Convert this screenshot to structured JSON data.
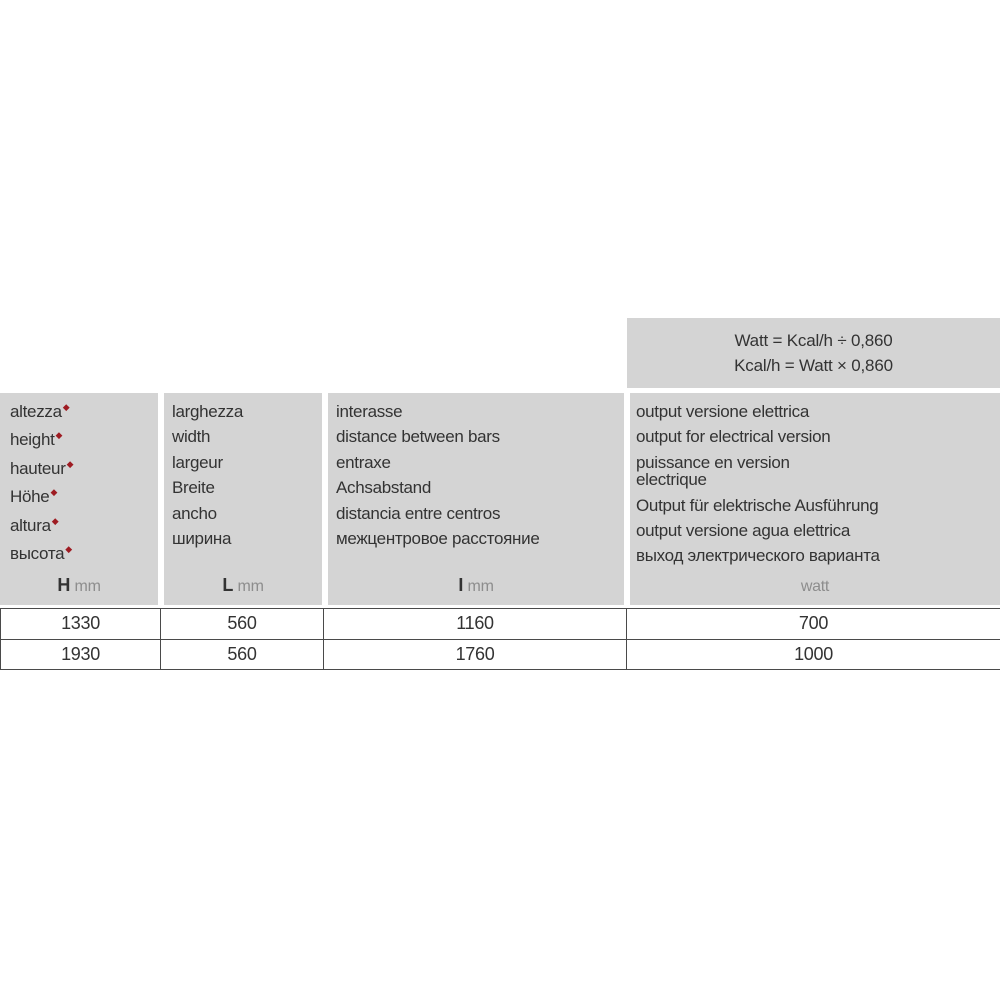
{
  "icons": {
    "diamond": "◆"
  },
  "colors": {
    "panel_bg": "#d4d4d4",
    "text_dark": "#333333",
    "text_gray": "#8d8d8d",
    "diamond_red": "#9e1b22",
    "table_border": "#4a4a4a"
  },
  "formula_box": {
    "line1": "Watt = Kcal/h ÷ 0,860",
    "line2": "Kcal/h = Watt × 0,860"
  },
  "columns": [
    {
      "name": "height",
      "labels": [
        "altezza",
        "height",
        "hauteur",
        "Höhe",
        "altura",
        "высота"
      ],
      "unit_symbol": "H",
      "unit_text": "mm"
    },
    {
      "name": "width",
      "labels": [
        "larghezza",
        "width",
        "largeur",
        "Breite",
        "ancho",
        "ширина"
      ],
      "unit_symbol": "L",
      "unit_text": "mm"
    },
    {
      "name": "distance-between-bars",
      "labels": [
        "interasse",
        "distance between bars",
        "entraxe",
        "Achsabstand",
        "distancia entre centros",
        "межцентровое расстояние"
      ],
      "unit_symbol": "I",
      "unit_text": "mm"
    },
    {
      "name": "electrical-output",
      "labels": [
        "output versione elettrica",
        "output for electrical version",
        "puissance en version",
        "electrique",
        "Output für elektrische Ausführung",
        "output versione agua elettrica",
        "выход электрического варианта"
      ],
      "unit_symbol": "",
      "unit_text": "watt"
    }
  ],
  "rows": [
    [
      "1330",
      "560",
      "1160",
      "700"
    ],
    [
      "1930",
      "560",
      "1760",
      "1000"
    ]
  ]
}
